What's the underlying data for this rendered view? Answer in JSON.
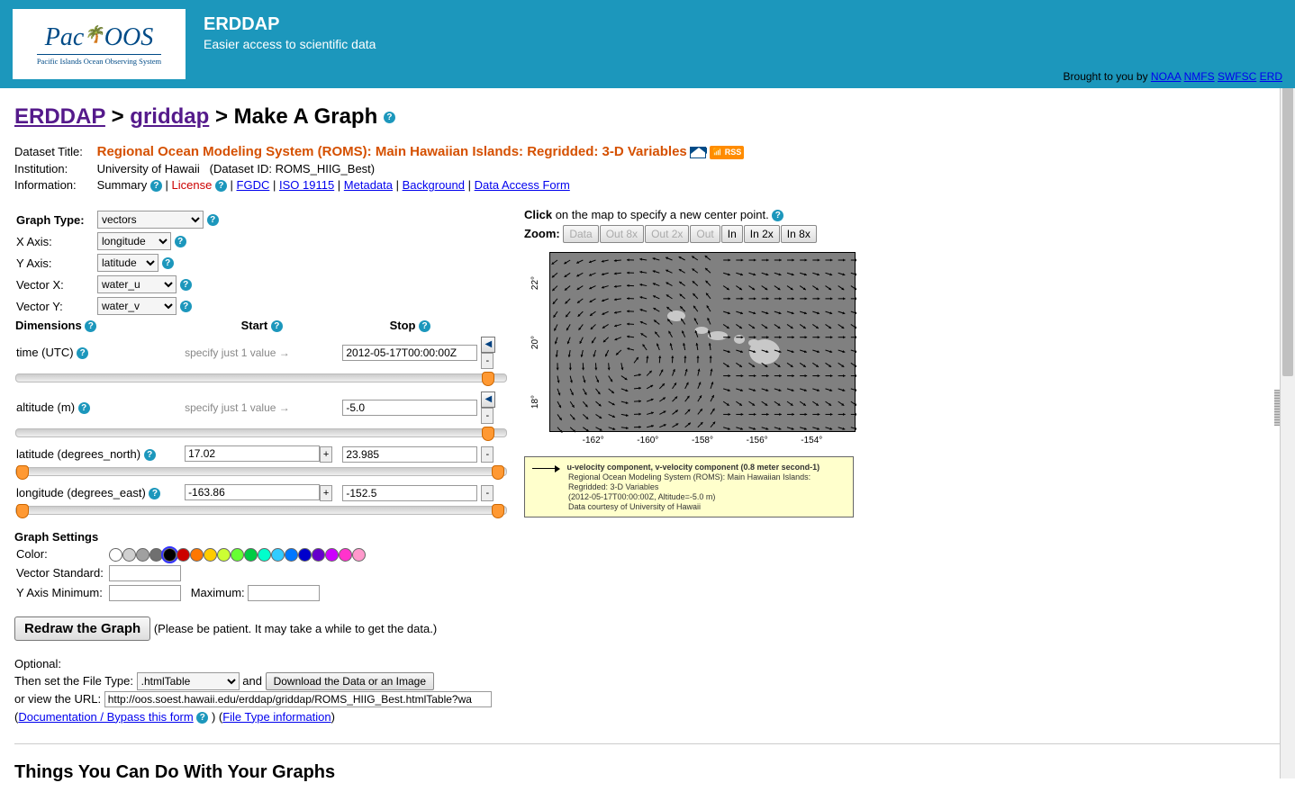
{
  "header": {
    "logo_main": "PacIOOS",
    "logo_sub": "Pacific Islands Ocean Observing System",
    "title": "ERDDAP",
    "subtitle": "Easier access to scientific data",
    "brought_by": "Brought to you by",
    "links": [
      "NOAA",
      "NMFS",
      "SWFSC",
      "ERD"
    ],
    "bg_color": "#1c97bc"
  },
  "breadcrumb": {
    "l1": "ERDDAP",
    "l2": "griddap",
    "tail": "Make A Graph",
    "link_color": "#551a8b"
  },
  "dataset": {
    "label_title": "Dataset Title:",
    "title": "Regional Ocean Modeling System (ROMS): Main Hawaiian Islands: Regridded: 3-D Variables",
    "title_color": "#d55000",
    "rss_label": "RSS",
    "label_institution": "Institution:",
    "institution": "University of Hawaii",
    "dataset_id": "(Dataset ID: ROMS_HIIG_Best)",
    "label_info": "Information:",
    "summary": "Summary",
    "license": "License",
    "links": [
      "FGDC",
      "ISO 19115",
      "Metadata",
      "Background",
      "Data Access Form"
    ]
  },
  "graph": {
    "type_label": "Graph Type:",
    "type_value": "vectors",
    "xaxis_label": "X Axis:",
    "xaxis_value": "longitude",
    "yaxis_label": "Y Axis:",
    "yaxis_value": "latitude",
    "vx_label": "Vector X:",
    "vx_value": "water_u",
    "vy_label": "Vector Y:",
    "vy_value": "water_v"
  },
  "dimensions": {
    "header": "Dimensions",
    "start_label": "Start",
    "stop_label": "Stop",
    "rows": [
      {
        "label": "time (UTC)",
        "start_hint": "specify just 1 value →",
        "stop": "2012-05-17T00:00:00Z",
        "has_arrows": true,
        "single": true,
        "thumb_pct": 95
      },
      {
        "label": "altitude (m)",
        "start_hint": "specify just 1 value →",
        "stop": "-5.0",
        "has_arrows": true,
        "single": true,
        "thumb_pct": 95
      },
      {
        "label": "latitude (degrees_north)",
        "start": "17.02",
        "stop": "23.985",
        "has_plus": true,
        "thumb_l": 0,
        "thumb_r": 97
      },
      {
        "label": "longitude (degrees_east)",
        "start": "-163.86",
        "stop": "-152.5",
        "has_plus": true,
        "thumb_l": 0,
        "thumb_r": 97
      }
    ]
  },
  "settings": {
    "header": "Graph Settings",
    "color_label": "Color:",
    "colors": [
      "#ffffff",
      "#d0d0d0",
      "#a0a0a0",
      "#707070",
      "#000000",
      "#cc0000",
      "#ff7700",
      "#ffcc00",
      "#ccff33",
      "#66ff33",
      "#00cc44",
      "#00ffcc",
      "#33ccff",
      "#0077ff",
      "#0000cc",
      "#6600cc",
      "#cc00ff",
      "#ff33cc",
      "#ff99cc"
    ],
    "selected_color_index": 4,
    "vec_std_label": "Vector Standard:",
    "yaxis_min_label": "Y Axis Minimum:",
    "yaxis_max_label": "Maximum:"
  },
  "redraw": {
    "button": "Redraw the Graph",
    "hint": "(Please be patient. It may take a while to get the data.)"
  },
  "optional": {
    "label": "Optional:",
    "file_label": "Then set the File Type:",
    "file_value": ".htmlTable",
    "and": "and",
    "download": "Download the Data or an Image",
    "url_label": "or view the URL:",
    "url_value": "http://oos.soest.hawaii.edu/erddap/griddap/ROMS_HIIG_Best.htmlTable?wa",
    "doc_link": "Documentation / Bypass this form",
    "ftype_link": "File Type information"
  },
  "zoom": {
    "click_label": "Click",
    "click_text": "on the map to specify a new center point.",
    "zoom_label": "Zoom:",
    "buttons": [
      "Data",
      "Out 8x",
      "Out 2x",
      "Out",
      "In",
      "In 2x",
      "In 8x"
    ],
    "enabled": [
      false,
      false,
      false,
      false,
      true,
      true,
      true
    ]
  },
  "map": {
    "bg_color": "#808080",
    "island_color": "#c8c8c8",
    "x_ticks": [
      "-162°",
      "-160°",
      "-158°",
      "-156°",
      "-154°"
    ],
    "y_ticks": [
      "22°",
      "20°",
      "18°"
    ],
    "xlim": [
      -163.86,
      -152.5
    ],
    "ylim": [
      17.02,
      23.985
    ],
    "vector_grid": {
      "rows": 14,
      "cols": 24,
      "arrow_color": "#000000"
    }
  },
  "legend": {
    "bg_color": "#ffffcc",
    "l1": "u-velocity component, v-velocity component (0.8 meter second-1)",
    "l2": "Regional Ocean Modeling System (ROMS): Main Hawaiian Islands: Regridded: 3-D Variables",
    "l3": "(2012-05-17T00:00:00Z, Altitude=-5.0 m)",
    "l4": "Data courtesy of University of Hawaii"
  },
  "bottom": {
    "h2": "Things You Can Do With Your Graphs"
  }
}
